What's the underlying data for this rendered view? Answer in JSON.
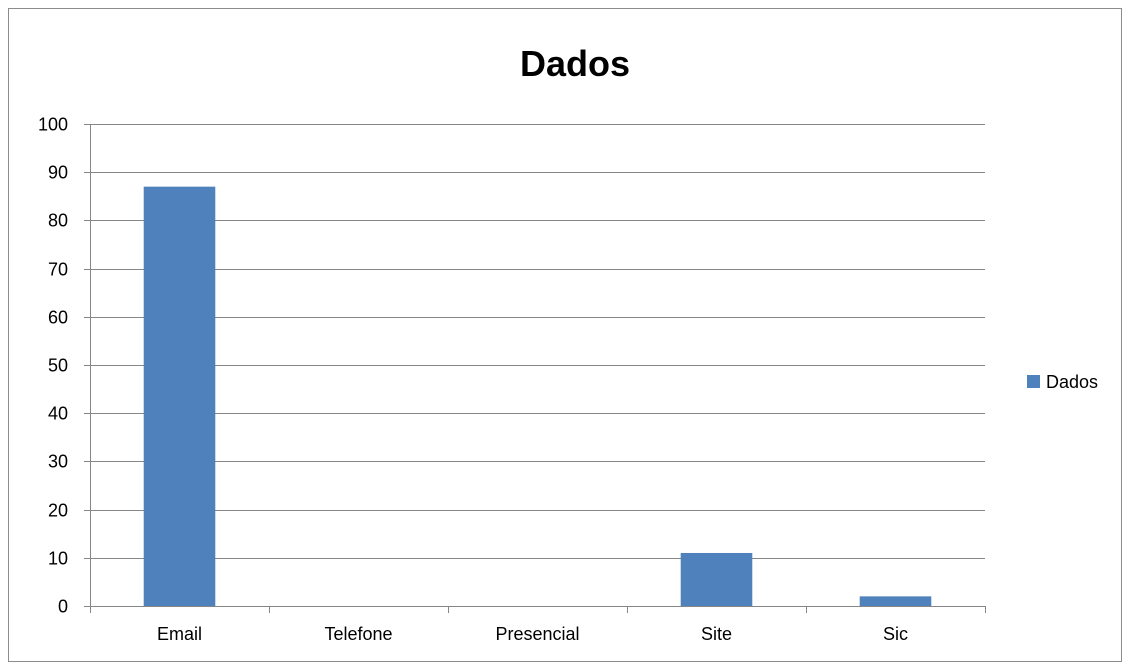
{
  "chart_data": {
    "type": "bar",
    "title": "Dados",
    "xlabel": "",
    "ylabel": "",
    "categories": [
      "Email",
      "Telefone",
      "Presencial",
      "Site",
      "Sic"
    ],
    "series": [
      {
        "name": "Dados",
        "values": [
          87,
          0,
          0,
          11,
          2
        ],
        "color": "#4f81bd"
      }
    ],
    "ylim": [
      0,
      100
    ],
    "yticks": [
      0,
      10,
      20,
      30,
      40,
      50,
      60,
      70,
      80,
      90,
      100
    ],
    "grid": true,
    "legend_position": "right"
  }
}
